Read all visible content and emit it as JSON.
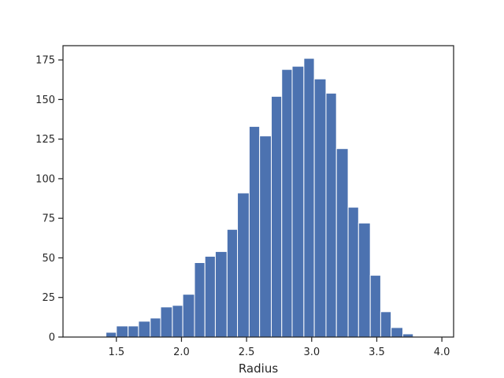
{
  "chart_data": {
    "type": "bar",
    "title": "",
    "xlabel": "Radius",
    "ylabel": "",
    "xlim": [
      1.09,
      4.09
    ],
    "ylim": [
      0,
      184
    ],
    "grid": false,
    "bar_color": "#4c72b0",
    "bar_edge_color": "#ffffff",
    "xticks": [
      1.5,
      2.0,
      2.5,
      3.0,
      3.5,
      4.0
    ],
    "xtick_labels": [
      "1.5",
      "2.0",
      "2.5",
      "3.0",
      "3.5",
      "4.0"
    ],
    "yticks": [
      0,
      25,
      50,
      75,
      100,
      125,
      150,
      175
    ],
    "ytick_labels": [
      "0",
      "25",
      "50",
      "75",
      "100",
      "125",
      "150",
      "175"
    ],
    "bins": [
      {
        "start": 1.42,
        "end": 1.5,
        "count": 3
      },
      {
        "start": 1.5,
        "end": 1.59,
        "count": 7
      },
      {
        "start": 1.59,
        "end": 1.67,
        "count": 7
      },
      {
        "start": 1.67,
        "end": 1.76,
        "count": 10
      },
      {
        "start": 1.76,
        "end": 1.84,
        "count": 12
      },
      {
        "start": 1.84,
        "end": 1.93,
        "count": 19
      },
      {
        "start": 1.93,
        "end": 2.01,
        "count": 20
      },
      {
        "start": 2.01,
        "end": 2.1,
        "count": 27
      },
      {
        "start": 2.1,
        "end": 2.18,
        "count": 47
      },
      {
        "start": 2.18,
        "end": 2.26,
        "count": 51
      },
      {
        "start": 2.26,
        "end": 2.35,
        "count": 54
      },
      {
        "start": 2.35,
        "end": 2.43,
        "count": 68
      },
      {
        "start": 2.43,
        "end": 2.52,
        "count": 91
      },
      {
        "start": 2.52,
        "end": 2.6,
        "count": 133
      },
      {
        "start": 2.6,
        "end": 2.69,
        "count": 127
      },
      {
        "start": 2.69,
        "end": 2.77,
        "count": 152
      },
      {
        "start": 2.77,
        "end": 2.85,
        "count": 169
      },
      {
        "start": 2.85,
        "end": 2.94,
        "count": 171
      },
      {
        "start": 2.94,
        "end": 3.02,
        "count": 176
      },
      {
        "start": 3.02,
        "end": 3.11,
        "count": 163
      },
      {
        "start": 3.11,
        "end": 3.19,
        "count": 154
      },
      {
        "start": 3.19,
        "end": 3.28,
        "count": 119
      },
      {
        "start": 3.28,
        "end": 3.36,
        "count": 82
      },
      {
        "start": 3.36,
        "end": 3.45,
        "count": 72
      },
      {
        "start": 3.45,
        "end": 3.53,
        "count": 39
      },
      {
        "start": 3.53,
        "end": 3.61,
        "count": 16
      },
      {
        "start": 3.61,
        "end": 3.7,
        "count": 6
      },
      {
        "start": 3.7,
        "end": 3.78,
        "count": 2
      },
      {
        "start": 3.78,
        "end": 3.87,
        "count": 0
      },
      {
        "start": 3.87,
        "end": 3.95,
        "count": 0
      },
      {
        "start": 3.95,
        "end": 4.04,
        "count": 0
      }
    ]
  }
}
